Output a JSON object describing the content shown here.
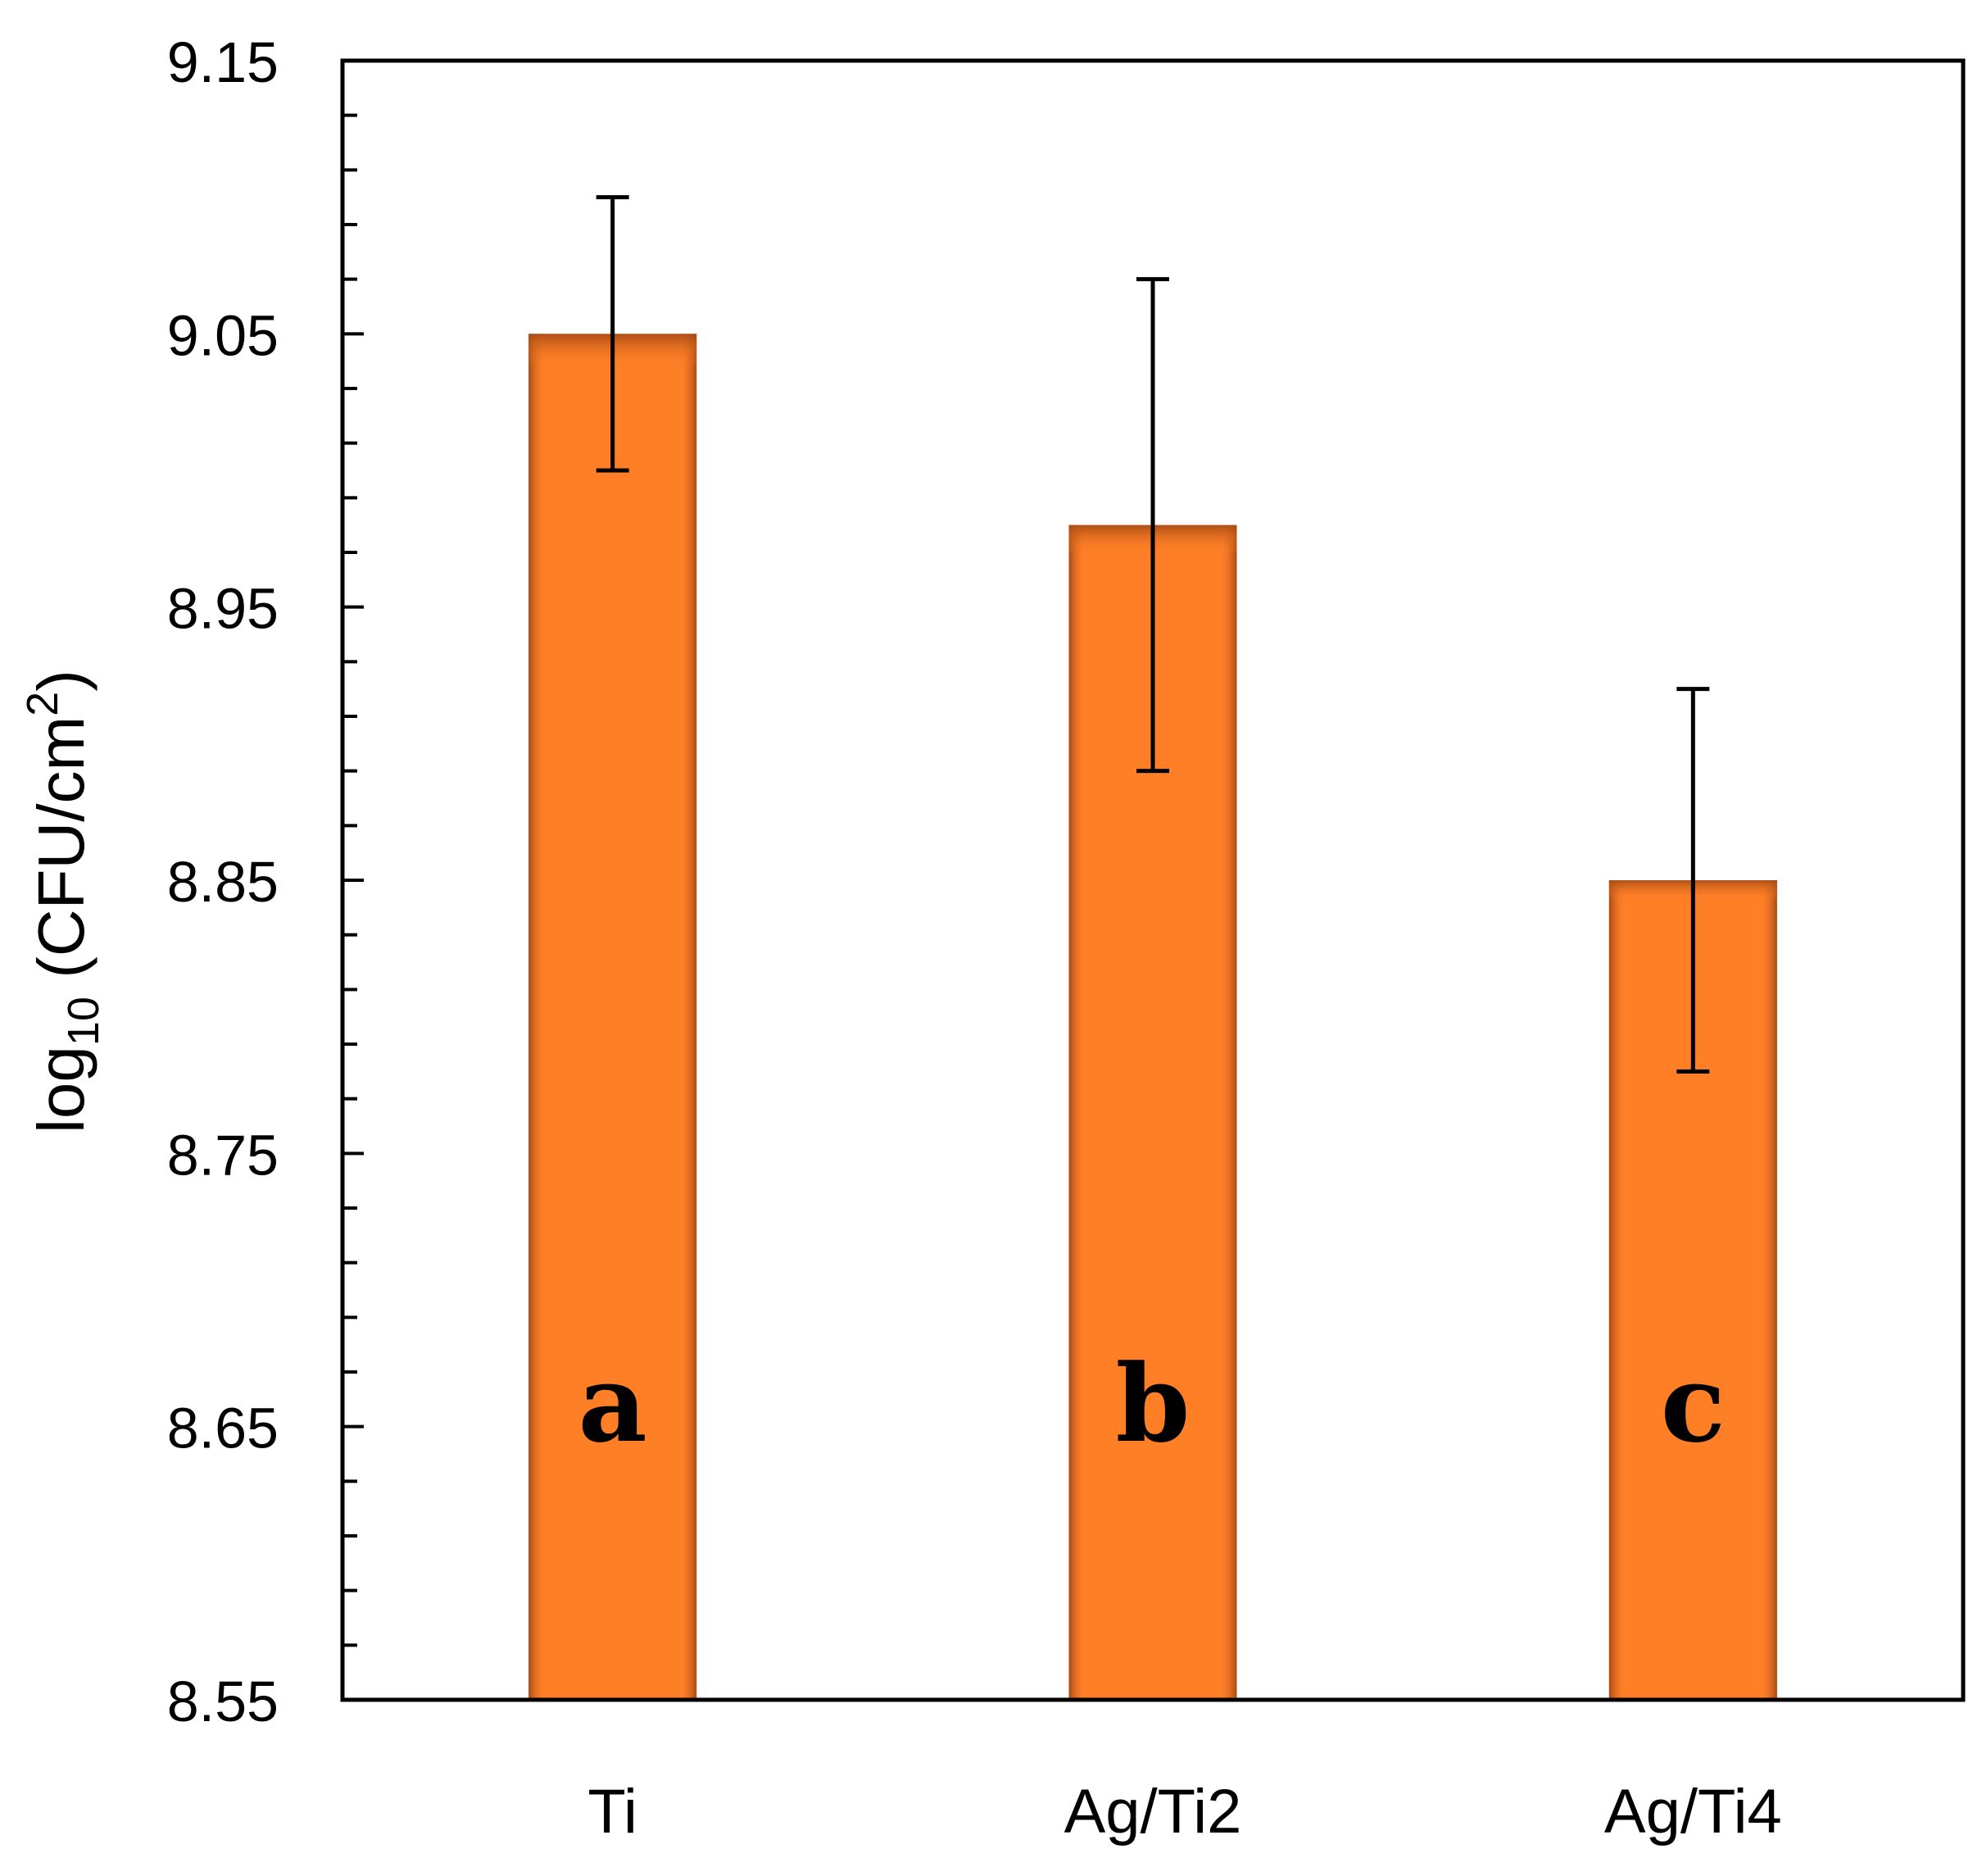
{
  "chart_data": {
    "type": "bar",
    "categories": [
      "Ti",
      "Ag/Ti2",
      "Ag/Ti4"
    ],
    "values": [
      9.05,
      8.98,
      8.85
    ],
    "error_low": [
      9.0,
      8.89,
      8.78
    ],
    "error_high": [
      9.1,
      9.07,
      8.92
    ],
    "bar_labels": [
      "a",
      "b",
      "c"
    ],
    "ylim": [
      8.55,
      9.15
    ],
    "y_major_ticks": [
      "8.55",
      "8.65",
      "8.75",
      "8.85",
      "8.95",
      "9.05",
      "9.15"
    ],
    "y_minor_step": 0.02,
    "ylabel": {
      "main": "log",
      "subscript": "10",
      "unit_open": " (CFU/cm",
      "superscript": "2",
      "unit_close": ")"
    },
    "title": "",
    "xlabel": "",
    "grid": false,
    "colors": {
      "bar_fill": "#ff7f27",
      "bar_edge": "#a84a12",
      "axis": "#000000",
      "error_bar": "#000000"
    }
  }
}
